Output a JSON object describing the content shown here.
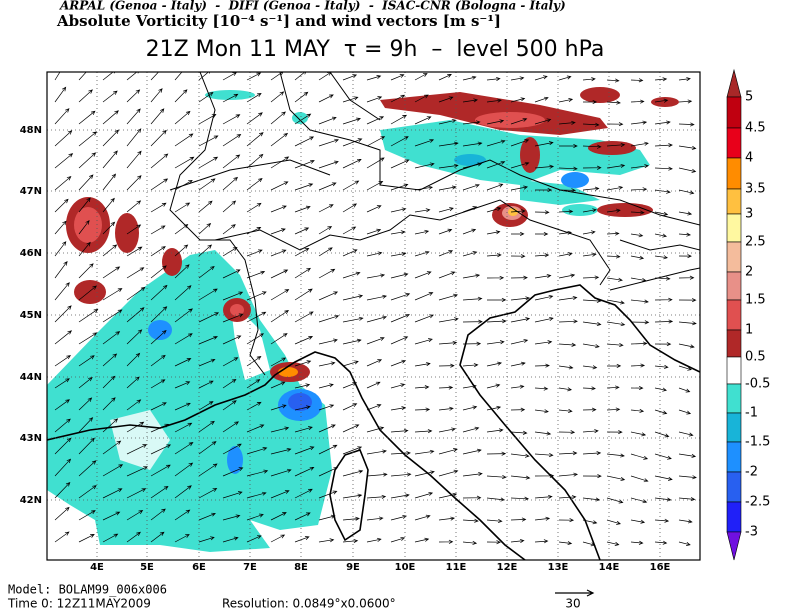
{
  "header": {
    "agencies": "ARPAL (Genoa - Italy)  -  DIFI (Genoa - Italy)  -  ISAC-CNR (Bologna - Italy)",
    "field": "Absolute Vorticity [10⁻⁴ s⁻¹] and wind vectors [m s⁻¹]",
    "title": "21Z Mon 11 MAY  τ = 9h  –  level 500 hPa"
  },
  "map": {
    "lat_labels": [
      "42N",
      "43N",
      "44N",
      "45N",
      "46N",
      "47N",
      "48N"
    ],
    "lon_labels": [
      "4E",
      "5E",
      "6E",
      "7E",
      "8E",
      "9E",
      "10E",
      "11E",
      "12E",
      "13E",
      "14E",
      "16E"
    ]
  },
  "colorbar": {
    "labels": [
      "5",
      "4.5",
      "4",
      "3.5",
      "3",
      "2.5",
      "2",
      "1.5",
      "1",
      "0.5",
      "-0.5",
      "-1",
      "-1.5",
      "-2",
      "-2.5",
      "-3"
    ],
    "colors": [
      "#a82828",
      "#c00010",
      "#e8001a",
      "#ff8c00",
      "#ffc040",
      "#fff8a0",
      "#f4bc9c",
      "#e89088",
      "#e05050",
      "#b02828",
      "#ffffff",
      "#40e0d0",
      "#18b4d8",
      "#1e90ff",
      "#2860f0",
      "#2020f8",
      "#7010e0"
    ]
  },
  "footer": {
    "model": "Model: BOLAM99_006x006",
    "time": "Time 0: 12Z11MAY2009",
    "resolution": "Resolution: 0.0849°x0.0600°",
    "vector_ref": "30"
  }
}
